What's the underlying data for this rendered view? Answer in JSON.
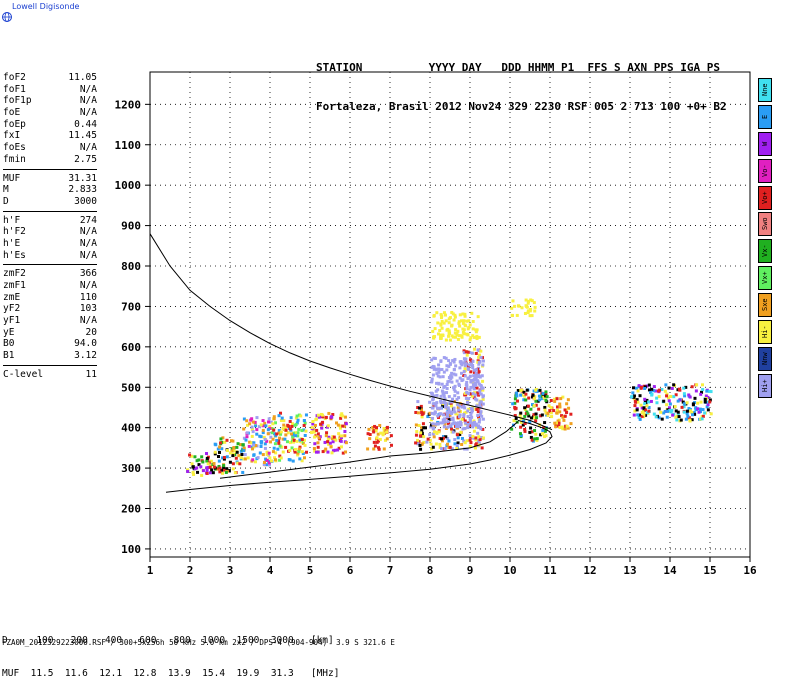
{
  "logo": {
    "text": "Lowell Digisonde",
    "icon": "globe-icon"
  },
  "header": {
    "line1": "STATION          YYYY DAY   DDD HHMM P1  FFS S AXN PPS IGA PS",
    "line2": "Fortaleza, Brasil 2012 Nov24 329 2230 RSF 005 2 713 100 +0+ B2"
  },
  "params": {
    "group1": [
      {
        "label": "foF2",
        "value": "11.05"
      },
      {
        "label": "foF1",
        "value": "N/A"
      },
      {
        "label": "foF1p",
        "value": "N/A"
      },
      {
        "label": "foE",
        "value": "N/A"
      },
      {
        "label": "foEp",
        "value": "0.44"
      },
      {
        "label": "fxI",
        "value": "11.45"
      },
      {
        "label": "foEs",
        "value": "N/A"
      },
      {
        "label": "fmin",
        "value": "2.75"
      }
    ],
    "group2": [
      {
        "label": "MUF",
        "value": "31.31"
      },
      {
        "label": "M",
        "value": "2.833"
      },
      {
        "label": "D",
        "value": "3000"
      }
    ],
    "group3": [
      {
        "label": "h'F",
        "value": "274"
      },
      {
        "label": "h'F2",
        "value": "N/A"
      },
      {
        "label": "h'E",
        "value": "N/A"
      },
      {
        "label": "h'Es",
        "value": "N/A"
      }
    ],
    "group4": [
      {
        "label": "zmF2",
        "value": "366"
      },
      {
        "label": "zmF1",
        "value": "N/A"
      },
      {
        "label": "zmE",
        "value": "110"
      },
      {
        "label": "yF2",
        "value": "103"
      },
      {
        "label": "yF1",
        "value": "N/A"
      },
      {
        "label": "yE",
        "value": "20"
      },
      {
        "label": "B0",
        "value": "94.0"
      },
      {
        "label": "B1",
        "value": "3.12"
      }
    ],
    "group5": [
      {
        "label": "C-level",
        "value": "11"
      }
    ]
  },
  "legend": [
    {
      "label": "Nne",
      "color": "#40e0f0"
    },
    {
      "label": "E",
      "color": "#2a9df4"
    },
    {
      "label": "W",
      "color": "#a020f0"
    },
    {
      "label": "Vo-",
      "color": "#e020c0"
    },
    {
      "label": "Vo+",
      "color": "#e02020"
    },
    {
      "label": "Swo",
      "color": "#f08080"
    },
    {
      "label": "Vx-",
      "color": "#20b020"
    },
    {
      "label": "Vx+",
      "color": "#60f060"
    },
    {
      "label": "Sxe",
      "color": "#f0a020"
    },
    {
      "label": "Hi-",
      "color": "#f8f040"
    },
    {
      "label": "Nnw",
      "color": "#2040a0"
    },
    {
      "label": "Hi+",
      "color": "#a0a0f0"
    }
  ],
  "muf_table": {
    "line1": "D     100   200   400   600   800  1000  1500  3000   [km]",
    "line2": "MUF  11.5  11.6  12.1  12.8  13.9  15.4  19.9  31.3   [MHz]"
  },
  "footer": "FZA0M_2012329223000.RSF / 300+5x256h 50 kHz 5.0 km 2x2 / DPS-4 (904-904)  3.9 S 321.6 E",
  "chart_data": {
    "type": "scatter",
    "xlabel": "",
    "ylabel": "",
    "xlim": [
      1,
      16
    ],
    "ylim": [
      80,
      1280
    ],
    "x_ticks": [
      1,
      2,
      3,
      4,
      5,
      6,
      7,
      8,
      9,
      10,
      11,
      12,
      13,
      14,
      15,
      16
    ],
    "y_ticks": [
      100,
      200,
      300,
      400,
      500,
      600,
      700,
      800,
      900,
      1000,
      1100,
      1200
    ],
    "grid": true,
    "series": [
      {
        "kind": "trace",
        "points": [
          [
            1.0,
            880
          ],
          [
            1.5,
            800
          ],
          [
            2.0,
            740
          ],
          [
            2.5,
            700
          ],
          [
            3.0,
            665
          ],
          [
            3.5,
            635
          ],
          [
            4.0,
            608
          ],
          [
            4.5,
            585
          ],
          [
            5.0,
            565
          ],
          [
            5.5,
            548
          ],
          [
            6.0,
            532
          ],
          [
            6.5,
            517
          ],
          [
            7.0,
            503
          ],
          [
            7.5,
            490
          ],
          [
            8.0,
            478
          ],
          [
            8.5,
            466
          ],
          [
            9.0,
            455
          ],
          [
            9.5,
            443
          ],
          [
            10.0,
            431
          ],
          [
            10.5,
            418
          ],
          [
            11.05,
            395
          ]
        ]
      },
      {
        "kind": "trace",
        "points": [
          [
            1.4,
            240
          ],
          [
            2.0,
            247
          ],
          [
            3.0,
            257
          ],
          [
            4.0,
            265
          ],
          [
            5.0,
            272
          ],
          [
            6.0,
            280
          ],
          [
            7.0,
            288
          ],
          [
            8.0,
            297
          ],
          [
            9.0,
            310
          ],
          [
            9.5,
            320
          ],
          [
            10.0,
            332
          ],
          [
            10.5,
            346
          ],
          [
            10.9,
            362
          ],
          [
            11.05,
            378
          ],
          [
            11.0,
            390
          ],
          [
            10.8,
            400
          ],
          [
            10.5,
            410
          ],
          [
            10.2,
            418
          ]
        ]
      },
      {
        "kind": "trace",
        "points": [
          [
            2.75,
            275
          ],
          [
            4.0,
            290
          ],
          [
            6.0,
            315
          ],
          [
            7.0,
            330
          ],
          [
            8.0,
            338
          ],
          [
            9.0,
            350
          ],
          [
            9.5,
            365
          ],
          [
            9.9,
            390
          ],
          [
            10.2,
            415
          ]
        ]
      }
    ],
    "echo_clusters": [
      {
        "x_range": [
          1.9,
          2.5
        ],
        "y_range": [
          280,
          340
        ],
        "colors": [
          "#e02020",
          "#20b020",
          "#a020f0",
          "#f8f040",
          "#000000"
        ]
      },
      {
        "x_range": [
          2.5,
          3.3
        ],
        "y_range": [
          290,
          380
        ],
        "colors": [
          "#e02020",
          "#f0a020",
          "#2a9df4",
          "#f8f040",
          "#20b020",
          "#000000"
        ]
      },
      {
        "x_range": [
          3.3,
          4.0
        ],
        "y_range": [
          310,
          430
        ],
        "colors": [
          "#f8f040",
          "#f0a020",
          "#2a9df4",
          "#e020c0",
          "#a0a0f0"
        ]
      },
      {
        "x_range": [
          4.0,
          4.9
        ],
        "y_range": [
          320,
          440
        ],
        "colors": [
          "#f8f040",
          "#f0a020",
          "#2a9df4",
          "#e02020",
          "#60f060"
        ]
      },
      {
        "x_range": [
          5.0,
          5.9
        ],
        "y_range": [
          340,
          440
        ],
        "colors": [
          "#f8f040",
          "#f0a020",
          "#e02020",
          "#a020f0"
        ]
      },
      {
        "x_range": [
          6.4,
          7.0
        ],
        "y_range": [
          350,
          410
        ],
        "colors": [
          "#f0a020",
          "#f8f040",
          "#e02020"
        ]
      },
      {
        "x_range": [
          7.6,
          8.8
        ],
        "y_range": [
          350,
          470
        ],
        "colors": [
          "#f8f040",
          "#f0a020",
          "#e02020",
          "#2a9df4",
          "#a0a0f0",
          "#000000"
        ]
      },
      {
        "x_range": [
          8.8,
          9.3
        ],
        "y_range": [
          350,
          600
        ],
        "colors": [
          "#a0a0f0",
          "#f8f040",
          "#e02020"
        ]
      },
      {
        "x_range": [
          10.0,
          10.9
        ],
        "y_range": [
          370,
          500
        ],
        "colors": [
          "#000000",
          "#e02020",
          "#f8f040",
          "#20b020",
          "#2a9df4"
        ]
      },
      {
        "x_range": [
          10.9,
          11.5
        ],
        "y_range": [
          400,
          480
        ],
        "colors": [
          "#f8f040",
          "#f0a020",
          "#e02020"
        ]
      },
      {
        "x_range": [
          13.0,
          15.0
        ],
        "y_range": [
          420,
          510
        ],
        "colors": [
          "#2a9df4",
          "#f8f040",
          "#e02020",
          "#a020f0",
          "#40e0f0",
          "#000000"
        ]
      },
      {
        "x_range": [
          8.0,
          9.2
        ],
        "y_range": [
          620,
          690
        ],
        "colors": [
          "#f8f040"
        ]
      },
      {
        "x_range": [
          10.0,
          10.6
        ],
        "y_range": [
          680,
          720
        ],
        "colors": [
          "#f8f040"
        ]
      },
      {
        "x_range": [
          8.0,
          9.3
        ],
        "y_range": [
          400,
          580
        ],
        "colors": [
          "#a0a0f0"
        ]
      }
    ]
  }
}
